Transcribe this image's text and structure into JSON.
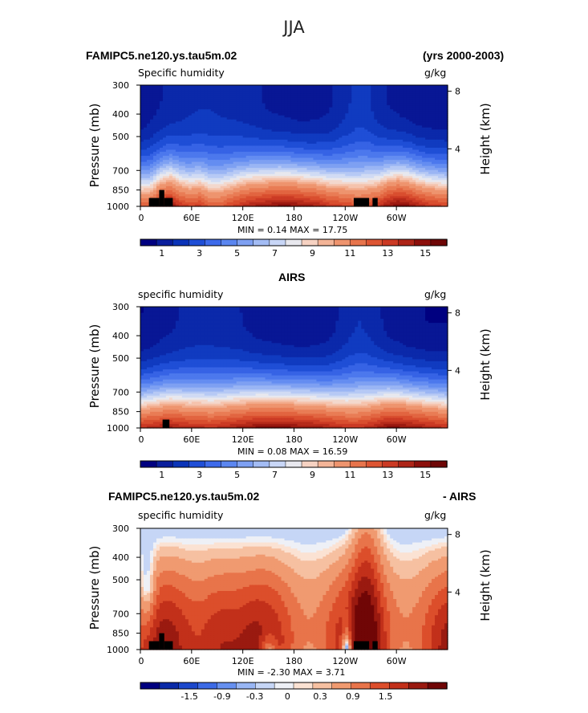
{
  "figure": {
    "title": "JJA",
    "case_name": "FAMIPC5.ne120.ys.tau5m.02",
    "years": "(yrs 2000-2003)",
    "obs_name": "AIRS",
    "diff_suffix": "- AIRS"
  },
  "colors": {
    "land_mask": "#000000",
    "frame": "#000000",
    "abs_palette": [
      "#000080",
      "#0a1e9c",
      "#0b34b8",
      "#1f4ed6",
      "#3d6aea",
      "#5b86f0",
      "#7ea0f2",
      "#a3bcf4",
      "#c8d6f6",
      "#e8e8ee",
      "#f6d2c2",
      "#f3b497",
      "#ee946e",
      "#e7744c",
      "#dd5533",
      "#cb3a24",
      "#ad2417",
      "#8c0f0b",
      "#6e0606"
    ],
    "diff_palette": [
      "#000080",
      "#0a2aa8",
      "#1c48cc",
      "#3c6ae6",
      "#6690f0",
      "#98b6f4",
      "#c6d6f6",
      "#eef0f6",
      "#fbe2d3",
      "#f6c0a1",
      "#f09a70",
      "#e8744a",
      "#dc4e2b",
      "#c2301a",
      "#9a1a10",
      "#700606"
    ]
  },
  "chart_data": [
    {
      "type": "heatmap",
      "name": "model-panel",
      "field": "Specific humidity",
      "units": "g/kg",
      "ylabel": "Pressure (mb)",
      "y2label": "Height (km)",
      "y_ticks": [
        "300",
        "400",
        "500",
        "700",
        "850",
        "1000"
      ],
      "y_tick_values": [
        300,
        400,
        500,
        700,
        850,
        1000
      ],
      "y2_ticks": [
        "8",
        "4"
      ],
      "y2_tick_values": [
        8,
        4
      ],
      "x_ticks": [
        "0",
        "60E",
        "120E",
        "180",
        "120W",
        "60W"
      ],
      "x_tick_values": [
        0,
        60,
        120,
        180,
        240,
        300
      ],
      "xlim": [
        0,
        360
      ],
      "ylim": [
        1000,
        300
      ],
      "stats": "MIN =    0.14   MAX =   17.75",
      "colorbar_labels": [
        "1",
        "3",
        "5",
        "7",
        "9",
        "11",
        "13",
        "15"
      ],
      "levels": [
        0.5,
        1,
        1.5,
        2,
        2.5,
        3,
        3.5,
        4,
        4.5,
        5,
        5.5,
        6,
        6.5,
        7,
        7.5,
        8,
        9,
        10,
        11,
        12,
        13,
        14,
        15,
        16
      ],
      "surface_profile": [
        11,
        11,
        14,
        15.5,
        13,
        12,
        12.5,
        11,
        11,
        12,
        13,
        14,
        14.5,
        15,
        15.5,
        15.5,
        15,
        14.5,
        14,
        13,
        12.5,
        12,
        11.5,
        12,
        13,
        15,
        16,
        15.5,
        14,
        13,
        12.5,
        12
      ],
      "upper_profile": [
        0.9,
        1.3,
        1.6,
        1.9,
        2.1,
        2.3,
        2.4,
        2.4,
        2.3,
        2.2,
        2.1,
        1.9,
        1.7,
        1.5,
        1.4,
        1.3,
        1.2,
        1.2,
        1.3,
        1.5,
        1.9,
        2.4,
        2.8,
        2.6,
        2.0,
        1.6,
        1.4,
        1.2,
        1.0,
        0.9,
        0.9,
        0.9
      ],
      "land_mask": [
        [
          10,
          22,
          920
        ],
        [
          22,
          28,
          850
        ],
        [
          28,
          38,
          920
        ],
        [
          250,
          268,
          920
        ],
        [
          272,
          278,
          920
        ]
      ]
    },
    {
      "type": "heatmap",
      "name": "airs-panel",
      "field": "specific humidity",
      "units": "g/kg",
      "ylabel": "Pressure (mb)",
      "y2label": "Height (km)",
      "y_ticks": [
        "300",
        "400",
        "500",
        "700",
        "850",
        "1000"
      ],
      "y_tick_values": [
        300,
        400,
        500,
        700,
        850,
        1000
      ],
      "y2_ticks": [
        "8",
        "4"
      ],
      "y2_tick_values": [
        8,
        4
      ],
      "x_ticks": [
        "0",
        "60E",
        "120E",
        "180",
        "120W",
        "60W"
      ],
      "x_tick_values": [
        0,
        60,
        120,
        180,
        240,
        300
      ],
      "xlim": [
        0,
        360
      ],
      "ylim": [
        1000,
        300
      ],
      "stats": "MIN =    0.08   MAX =   16.59",
      "colorbar_labels": [
        "1",
        "3",
        "5",
        "7",
        "9",
        "11",
        "13",
        "15"
      ],
      "levels": [
        0.5,
        1,
        1.5,
        2,
        2.5,
        3,
        3.5,
        4,
        4.5,
        5,
        5.5,
        6,
        6.5,
        7,
        7.5,
        8,
        9,
        10,
        11,
        12,
        13,
        14,
        15,
        16
      ],
      "surface_profile": [
        13,
        13.5,
        14,
        14.5,
        14,
        13.5,
        13.5,
        13,
        13.5,
        14,
        14.5,
        15,
        15.5,
        15.5,
        15.5,
        15.5,
        15,
        15,
        14.5,
        14,
        13.5,
        13,
        13,
        13.5,
        14.5,
        15.5,
        15.5,
        15,
        14.5,
        14,
        13.5,
        13
      ],
      "upper_profile": [
        0.8,
        1.0,
        1.3,
        1.5,
        1.7,
        1.9,
        2.0,
        2.0,
        1.9,
        1.8,
        1.7,
        1.5,
        1.3,
        1.2,
        1.1,
        1.0,
        1.0,
        1.0,
        1.1,
        1.3,
        1.7,
        2.2,
        2.5,
        2.3,
        1.8,
        1.4,
        1.2,
        1.0,
        0.9,
        0.8,
        0.8,
        0.8
      ],
      "land_mask": [
        [
          26,
          34,
          920
        ]
      ]
    },
    {
      "type": "heatmap",
      "name": "diff-panel",
      "field": "specific humidity",
      "units": "g/kg",
      "ylabel": "Pressure (mb)",
      "y2label": "Height (km)",
      "y_ticks": [
        "300",
        "400",
        "500",
        "700",
        "850",
        "1000"
      ],
      "y_tick_values": [
        300,
        400,
        500,
        700,
        850,
        1000
      ],
      "y2_ticks": [
        "8",
        "4"
      ],
      "y2_tick_values": [
        8,
        4
      ],
      "x_ticks": [
        "0",
        "60E",
        "120E",
        "180",
        "120W",
        "60W"
      ],
      "x_tick_values": [
        0,
        60,
        120,
        180,
        240,
        300
      ],
      "xlim": [
        0,
        360
      ],
      "ylim": [
        1000,
        300
      ],
      "stats": "MIN =   -2.30   MAX =    3.71",
      "colorbar_labels": [
        "-1.5",
        "-0.9",
        "-0.3",
        "0",
        "0.3",
        "0.9",
        "1.5"
      ],
      "levels": [
        -1.8,
        -1.5,
        -1.2,
        -0.9,
        -0.6,
        -0.3,
        -0.1,
        0,
        0.1,
        0.3,
        0.6,
        0.9,
        1.2,
        1.5,
        1.8
      ],
      "land_mask": [
        [
          10,
          22,
          920
        ],
        [
          22,
          28,
          850
        ],
        [
          28,
          38,
          920
        ],
        [
          250,
          268,
          920
        ],
        [
          272,
          278,
          920
        ]
      ]
    }
  ]
}
